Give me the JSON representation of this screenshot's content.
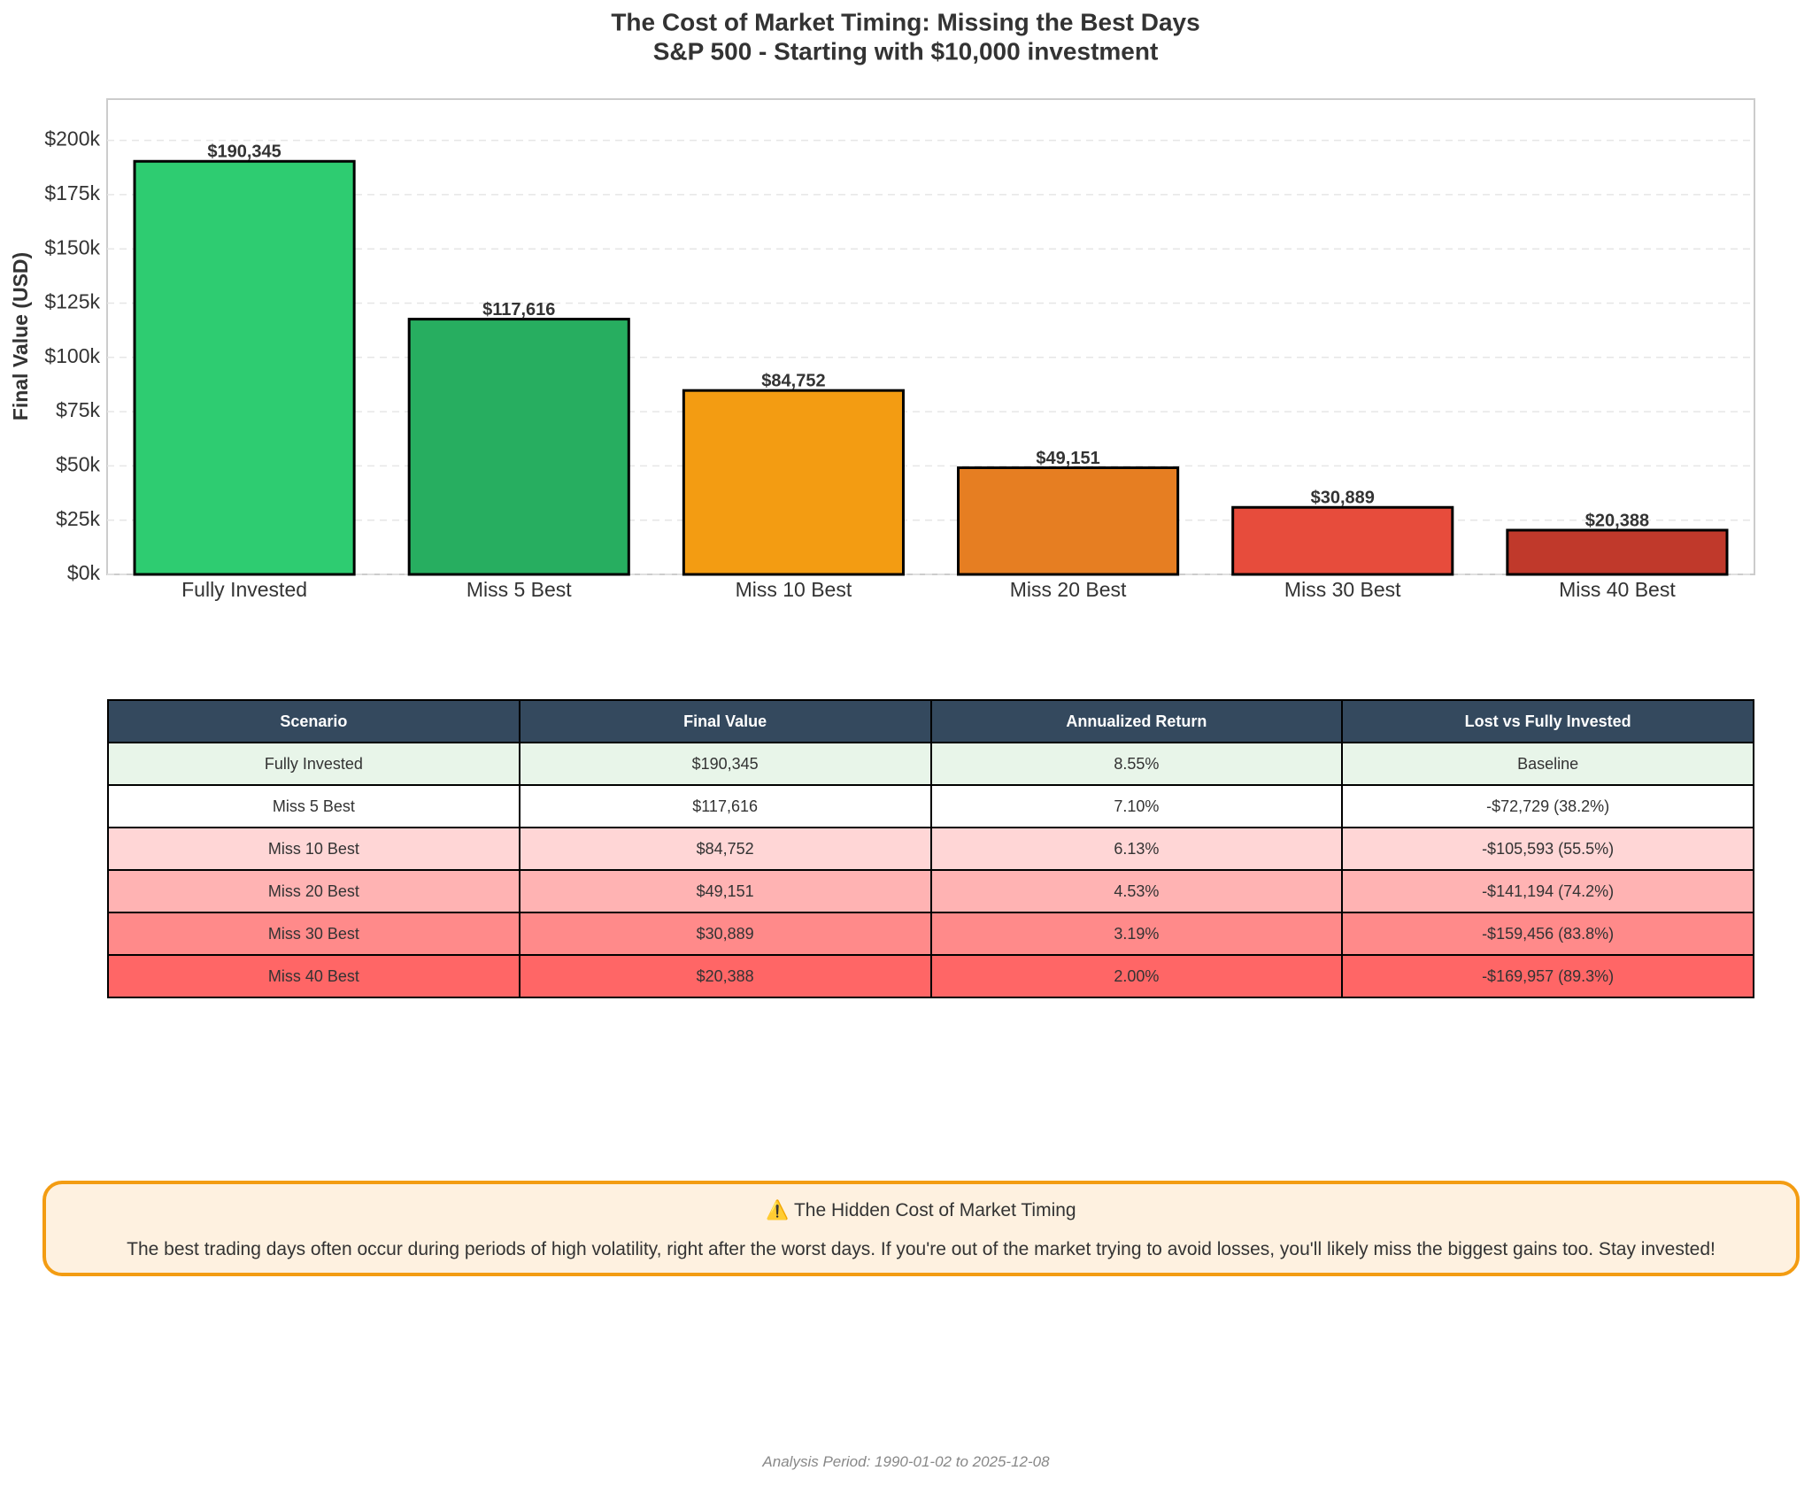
{
  "chart_data": {
    "type": "bar",
    "title": "The Cost of Market Timing: Missing the Best Days",
    "subtitle": "S&P 500 - Starting with $10,000 investment",
    "ylabel": "Final Value (USD)",
    "categories": [
      "Fully Invested",
      "Miss 5 Best",
      "Miss 10 Best",
      "Miss 20 Best",
      "Miss 30 Best",
      "Miss 40 Best"
    ],
    "values": [
      190345,
      117616,
      84752,
      49151,
      30889,
      20388
    ],
    "value_labels": [
      "$190,345",
      "$117,616",
      "$84,752",
      "$49,151",
      "$30,889",
      "$20,388"
    ],
    "colors": [
      "#2ecc71",
      "#27ae60",
      "#f39c12",
      "#e67e22",
      "#e74c3c",
      "#c0392b"
    ],
    "ylim": [
      0,
      219000
    ],
    "yticks": [
      {
        "value": 0,
        "label": "$0k"
      },
      {
        "value": 25000,
        "label": "$25k"
      },
      {
        "value": 50000,
        "label": "$50k"
      },
      {
        "value": 75000,
        "label": "$75k"
      },
      {
        "value": 100000,
        "label": "$100k"
      },
      {
        "value": 125000,
        "label": "$125k"
      },
      {
        "value": 150000,
        "label": "$150k"
      },
      {
        "value": 175000,
        "label": "$175k"
      },
      {
        "value": 200000,
        "label": "$200k"
      }
    ],
    "grid": true
  },
  "table": {
    "header": [
      "Scenario",
      "Final Value",
      "Annualized Return",
      "Lost vs Fully Invested"
    ],
    "header_color": "#34495e",
    "row_colors": [
      "#e8f5e9",
      "#ffffff",
      "#ffd6d6",
      "#ffb3b3",
      "#ff8a8a",
      "#ff6666"
    ],
    "rows": [
      [
        "Fully Invested",
        "$190,345",
        "8.55%",
        "Baseline"
      ],
      [
        "Miss 5 Best",
        "$117,616",
        "7.10%",
        "-$72,729 (38.2%)"
      ],
      [
        "Miss 10 Best",
        "$84,752",
        "6.13%",
        "-$105,593 (55.5%)"
      ],
      [
        "Miss 20 Best",
        "$49,151",
        "4.53%",
        "-$141,194 (74.2%)"
      ],
      [
        "Miss 30 Best",
        "$30,889",
        "3.19%",
        "-$159,456 (83.8%)"
      ],
      [
        "Miss 40 Best",
        "$20,388",
        "2.00%",
        "-$169,957 (89.3%)"
      ]
    ]
  },
  "callout": {
    "title": "⚠️ The Hidden Cost of Market Timing",
    "text": "The best trading days often occur during periods of high volatility, right after the worst days. If you're out of the market trying to avoid losses, you'll likely miss the biggest gains too. Stay invested!"
  },
  "footer": "Analysis Period: 1990-01-02 to 2025-12-08"
}
